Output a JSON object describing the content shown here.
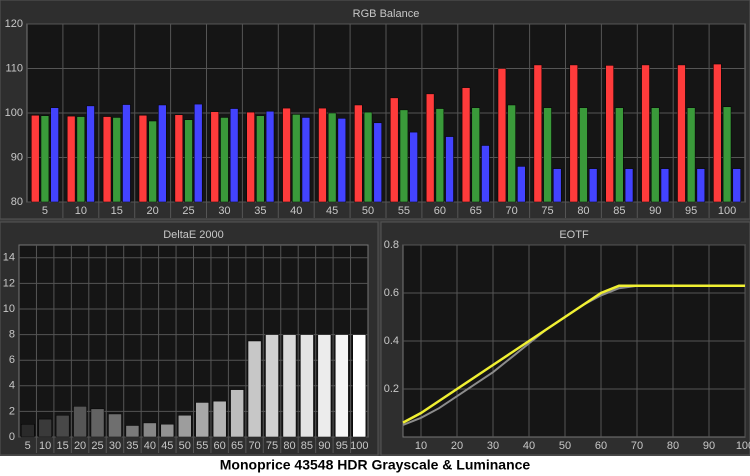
{
  "chart_data": [
    {
      "type": "grouped_bar",
      "title": "RGB Balance",
      "categories": [
        5,
        10,
        15,
        20,
        25,
        30,
        35,
        40,
        45,
        50,
        55,
        60,
        65,
        70,
        75,
        80,
        85,
        90,
        95,
        100
      ],
      "series": [
        {
          "color": "#ff3b3b",
          "values": [
            99.5,
            99.3,
            99.2,
            99.5,
            99.6,
            100.3,
            100.2,
            101.1,
            101.1,
            101.8,
            103.4,
            104.3,
            105.7,
            110,
            110.8,
            110.8,
            110.7,
            110.8,
            110.8,
            111
          ]
        },
        {
          "color": "#3a9a3a",
          "values": [
            99.4,
            99.2,
            99,
            98.2,
            98.5,
            99,
            99.4,
            99.7,
            100,
            100.2,
            100.7,
            101,
            101.2,
            101.8,
            101.2,
            101.2,
            101.2,
            101.2,
            101.2,
            101.4
          ]
        },
        {
          "color": "#4343ff",
          "values": [
            101.2,
            101.6,
            101.9,
            101.8,
            102,
            101,
            100.4,
            99,
            98.8,
            97.8,
            95.7,
            94.7,
            92.7,
            88,
            87.5,
            87.5,
            87.5,
            87.5,
            87.5,
            87.5
          ]
        }
      ],
      "ylim": [
        80,
        120
      ],
      "yticks": [
        80,
        90,
        100,
        110,
        120
      ],
      "grid": true
    },
    {
      "type": "bar",
      "title": "DeltaE 2000",
      "categories": [
        5,
        10,
        15,
        20,
        25,
        30,
        35,
        40,
        45,
        50,
        55,
        60,
        65,
        70,
        75,
        80,
        85,
        90,
        95,
        100
      ],
      "values": [
        1.0,
        1.4,
        1.7,
        2.4,
        2.2,
        1.8,
        0.9,
        1.1,
        1.0,
        1.7,
        2.7,
        2.8,
        3.7,
        7.5,
        8,
        8,
        8,
        8,
        8,
        8
      ],
      "colors": [
        "#2a2a2a",
        "#3a3a3a",
        "#484848",
        "#565656",
        "#636363",
        "#6f6f6f",
        "#7b7b7b",
        "#878787",
        "#929292",
        "#9d9d9d",
        "#a8a8a8",
        "#b3b3b3",
        "#bdbdbd",
        "#c7c7c7",
        "#d1d1d1",
        "#dadada",
        "#e3e3e3",
        "#ececec",
        "#f5f5f5",
        "#ffffff"
      ],
      "ylim": [
        0,
        15
      ],
      "yticks": [
        0,
        2,
        4,
        6,
        8,
        10,
        12,
        14
      ],
      "grid": true
    },
    {
      "type": "line",
      "title": "EOTF",
      "x": [
        5,
        10,
        15,
        20,
        25,
        30,
        35,
        40,
        45,
        50,
        55,
        60,
        65,
        70,
        75,
        80,
        85,
        90,
        95,
        100
      ],
      "series": [
        {
          "color": "#8c8c8c",
          "values": [
            0.05,
            0.08,
            0.12,
            0.17,
            0.22,
            0.27,
            0.33,
            0.39,
            0.45,
            0.5,
            0.55,
            0.59,
            0.62,
            0.63,
            0.63,
            0.63,
            0.63,
            0.63,
            0.63,
            0.63
          ]
        },
        {
          "color": "#f0f032",
          "values": [
            0.06,
            0.1,
            0.15,
            0.2,
            0.25,
            0.3,
            0.35,
            0.4,
            0.45,
            0.5,
            0.55,
            0.6,
            0.63,
            0.63,
            0.63,
            0.63,
            0.63,
            0.63,
            0.63,
            0.63
          ]
        }
      ],
      "xlim": [
        5,
        100
      ],
      "xticks": [
        10,
        20,
        30,
        40,
        50,
        60,
        70,
        80,
        90,
        100
      ],
      "ylim": [
        0,
        0.8
      ],
      "yticks": [
        0.2,
        0.4,
        0.6,
        0.8
      ],
      "grid": true
    }
  ],
  "caption": "Monoprice 43548 HDR Grayscale & Luminance"
}
